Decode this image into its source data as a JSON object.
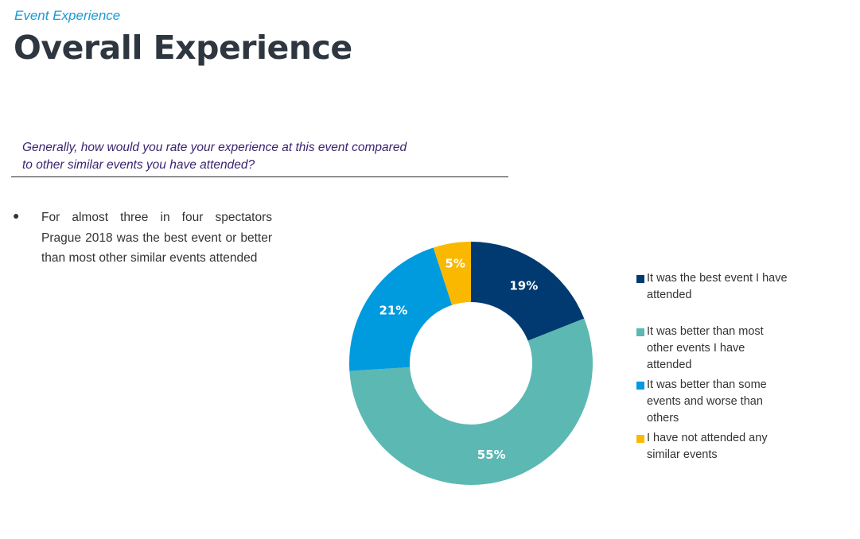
{
  "header": {
    "subtitle": "Event Experience",
    "title": "Overall Experience"
  },
  "question": {
    "line1": "Generally, how would you rate your experience at this event compared",
    "line2": "to other similar events you have attended?"
  },
  "bullets": [
    "For almost three in four spectators Prague 2018 was the best event or better than most other similar events attended"
  ],
  "chart_data": {
    "type": "pie",
    "variant": "donut",
    "title": "",
    "categories": [
      "It was the best event I have attended",
      "It was better than most other events I have attended",
      "It was better than some events and worse than others",
      "I have not attended any similar events"
    ],
    "values": [
      19,
      55,
      21,
      5
    ],
    "data_labels": [
      "19%",
      "55%",
      "21%",
      "5%"
    ],
    "colors": [
      "#003a70",
      "#5cb8b2",
      "#009ade",
      "#fbb800"
    ],
    "legend_position": "right"
  },
  "legend": [
    {
      "lines": [
        "It was the best event I have",
        "attended"
      ]
    },
    {
      "lines": [
        "It was better than most",
        "other events I have",
        "attended"
      ]
    },
    {
      "lines": [
        "It was better than some",
        "events and worse than",
        "others"
      ]
    },
    {
      "lines": [
        "I have not attended any",
        "similar events"
      ]
    }
  ]
}
